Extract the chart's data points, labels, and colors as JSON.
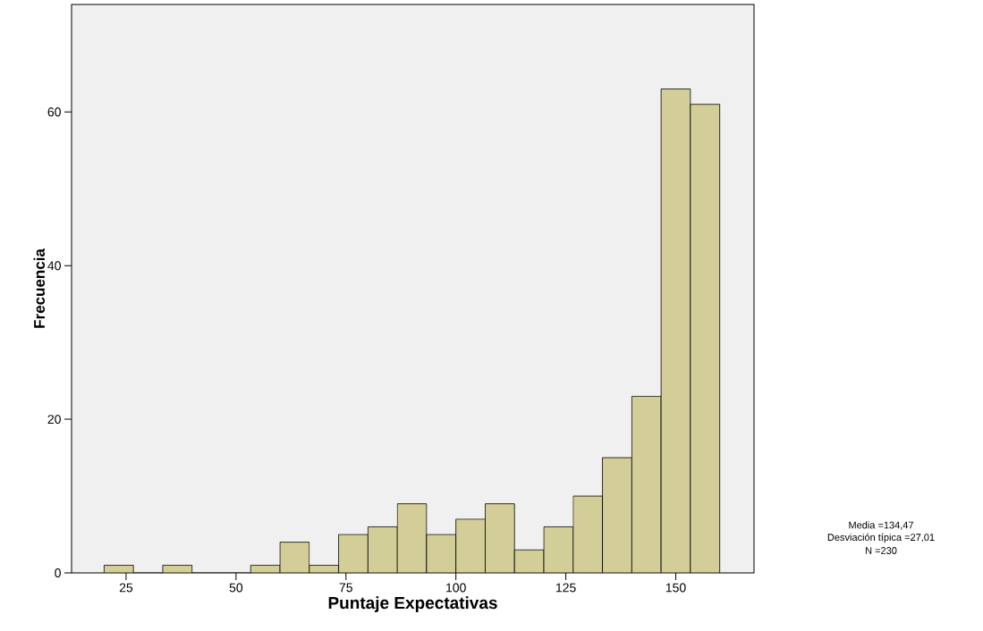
{
  "chart_data": {
    "type": "histogram",
    "xlabel": "Puntaje Expectativas",
    "ylabel": "Frecuencia",
    "bins": [
      20,
      26.67,
      33.33,
      40,
      46.67,
      53.33,
      60,
      66.67,
      73.33,
      80,
      86.67,
      93.33,
      100,
      106.67,
      113.33,
      120,
      126.67,
      133.33,
      140,
      146.67,
      153.33,
      160
    ],
    "values": [
      1,
      0,
      1,
      0,
      0,
      1,
      4,
      1,
      5,
      6,
      9,
      5,
      7,
      9,
      3,
      6,
      10,
      15,
      23,
      63,
      61
    ],
    "color": "#d3ce97",
    "xlim": [
      12.6,
      167.8
    ],
    "ylim": [
      0,
      74
    ],
    "xticks": [
      25,
      50,
      75,
      100,
      125,
      150
    ],
    "yticks": [
      0,
      20,
      40,
      60
    ],
    "grid": false,
    "annotations": [
      "Media =134,47",
      "Desviación típica =27,01",
      "N =230"
    ]
  }
}
